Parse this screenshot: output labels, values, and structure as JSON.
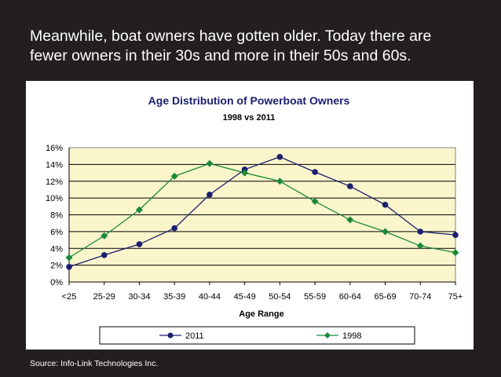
{
  "headline": {
    "line1": "Meanwhile, boat owners have gotten older.  Today there are",
    "line2": "fewer owners in their 30s and more in their 50s and 60s."
  },
  "source": "Source: Info-Link Technologies Inc.",
  "chart_data": {
    "type": "line",
    "title": "Age Distribution of Powerboat Owners",
    "subtitle": "1998 vs 2011",
    "xlabel": "Age Range",
    "ylabel": "",
    "categories": [
      "<25",
      "25-29",
      "30-34",
      "35-39",
      "40-44",
      "45-49",
      "50-54",
      "55-59",
      "60-64",
      "65-69",
      "70-74",
      "75+"
    ],
    "ylim": [
      0,
      16
    ],
    "yticks": [
      "0%",
      "2%",
      "4%",
      "6%",
      "8%",
      "10%",
      "12%",
      "14%",
      "16%"
    ],
    "grid": true,
    "legend_position": "bottom",
    "series": [
      {
        "name": "2011",
        "color": "#1a1f6e",
        "marker": "circle",
        "values": [
          1.8,
          3.2,
          4.5,
          6.4,
          10.4,
          13.4,
          14.9,
          13.1,
          11.4,
          9.2,
          6.0,
          5.6
        ]
      },
      {
        "name": "1998",
        "color": "#1a8a3a",
        "marker": "diamond",
        "values": [
          2.9,
          5.5,
          8.6,
          12.6,
          14.1,
          13.0,
          12.0,
          9.6,
          7.4,
          6.0,
          4.3,
          3.5
        ]
      }
    ],
    "plot_background": "#fbf5cc"
  }
}
